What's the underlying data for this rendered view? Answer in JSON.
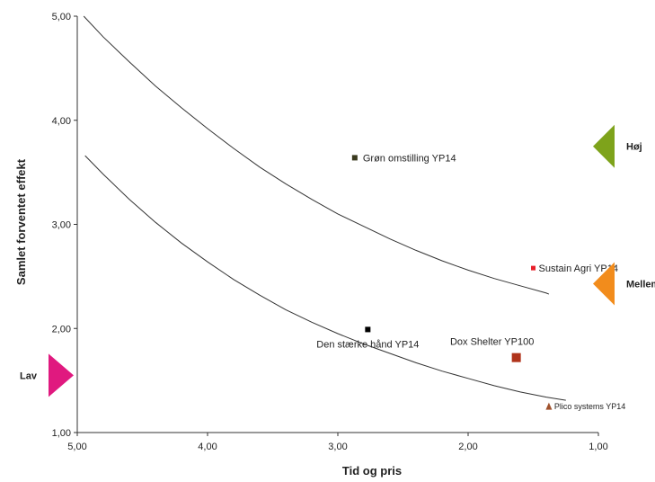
{
  "chart_data": {
    "type": "scatter",
    "title": "",
    "xlabel": "Tid og pris",
    "ylabel": "Samlet forventet effekt",
    "xlim": [
      5.0,
      1.0
    ],
    "ylim": [
      1.0,
      5.0
    ],
    "x_reversed": true,
    "grid": false,
    "x_ticks": [
      "5,00",
      "4,00",
      "3,00",
      "2,00",
      "1,00"
    ],
    "y_ticks": [
      "1,00",
      "2,00",
      "3,00",
      "4,00",
      "5,00"
    ],
    "points": [
      {
        "label": "Grøn omstilling  YP14",
        "x": 2.87,
        "y": 3.64,
        "color": "#3a3a1e",
        "marker": "square"
      },
      {
        "label": "Sustain Agri YP14",
        "x": 1.5,
        "y": 2.58,
        "color": "#e8202a",
        "marker": "square"
      },
      {
        "label": "Den stærke hånd YP14",
        "x": 2.77,
        "y": 1.99,
        "color": "#000000",
        "marker": "square"
      },
      {
        "label": "Dox Shelter YP100",
        "x": 1.63,
        "y": 1.72,
        "color": "#b0341b",
        "marker": "square"
      },
      {
        "label": "Plico systems YP14",
        "x": 1.38,
        "y": 1.25,
        "color": "#a0522d",
        "marker": "triangle"
      }
    ],
    "curves": [
      {
        "x": [
          4.95,
          4.8,
          4.6,
          4.4,
          4.2,
          4.0,
          3.8,
          3.6,
          3.4,
          3.2,
          3.0,
          2.8,
          2.6,
          2.4,
          2.2,
          2.0,
          1.8,
          1.6,
          1.4,
          1.38
        ],
        "y": [
          5.0,
          4.8,
          4.56,
          4.33,
          4.12,
          3.92,
          3.73,
          3.55,
          3.39,
          3.24,
          3.1,
          2.98,
          2.86,
          2.75,
          2.65,
          2.56,
          2.48,
          2.41,
          2.34,
          2.33
        ]
      },
      {
        "x": [
          4.94,
          4.8,
          4.6,
          4.4,
          4.2,
          4.0,
          3.8,
          3.6,
          3.4,
          3.2,
          3.0,
          2.8,
          2.6,
          2.4,
          2.2,
          2.0,
          1.8,
          1.6,
          1.4,
          1.25
        ],
        "y": [
          3.66,
          3.48,
          3.24,
          3.02,
          2.82,
          2.64,
          2.47,
          2.32,
          2.18,
          2.06,
          1.95,
          1.85,
          1.76,
          1.67,
          1.59,
          1.52,
          1.45,
          1.39,
          1.34,
          1.31
        ]
      }
    ],
    "levels": [
      {
        "label": "Høj",
        "y": 3.75,
        "color": "#7ea31b",
        "side": "right"
      },
      {
        "label": "Mellem",
        "y": 2.43,
        "color": "#f28c1c",
        "side": "right"
      },
      {
        "label": "Lav",
        "y": 1.55,
        "color": "#e0197f",
        "side": "left"
      }
    ]
  }
}
